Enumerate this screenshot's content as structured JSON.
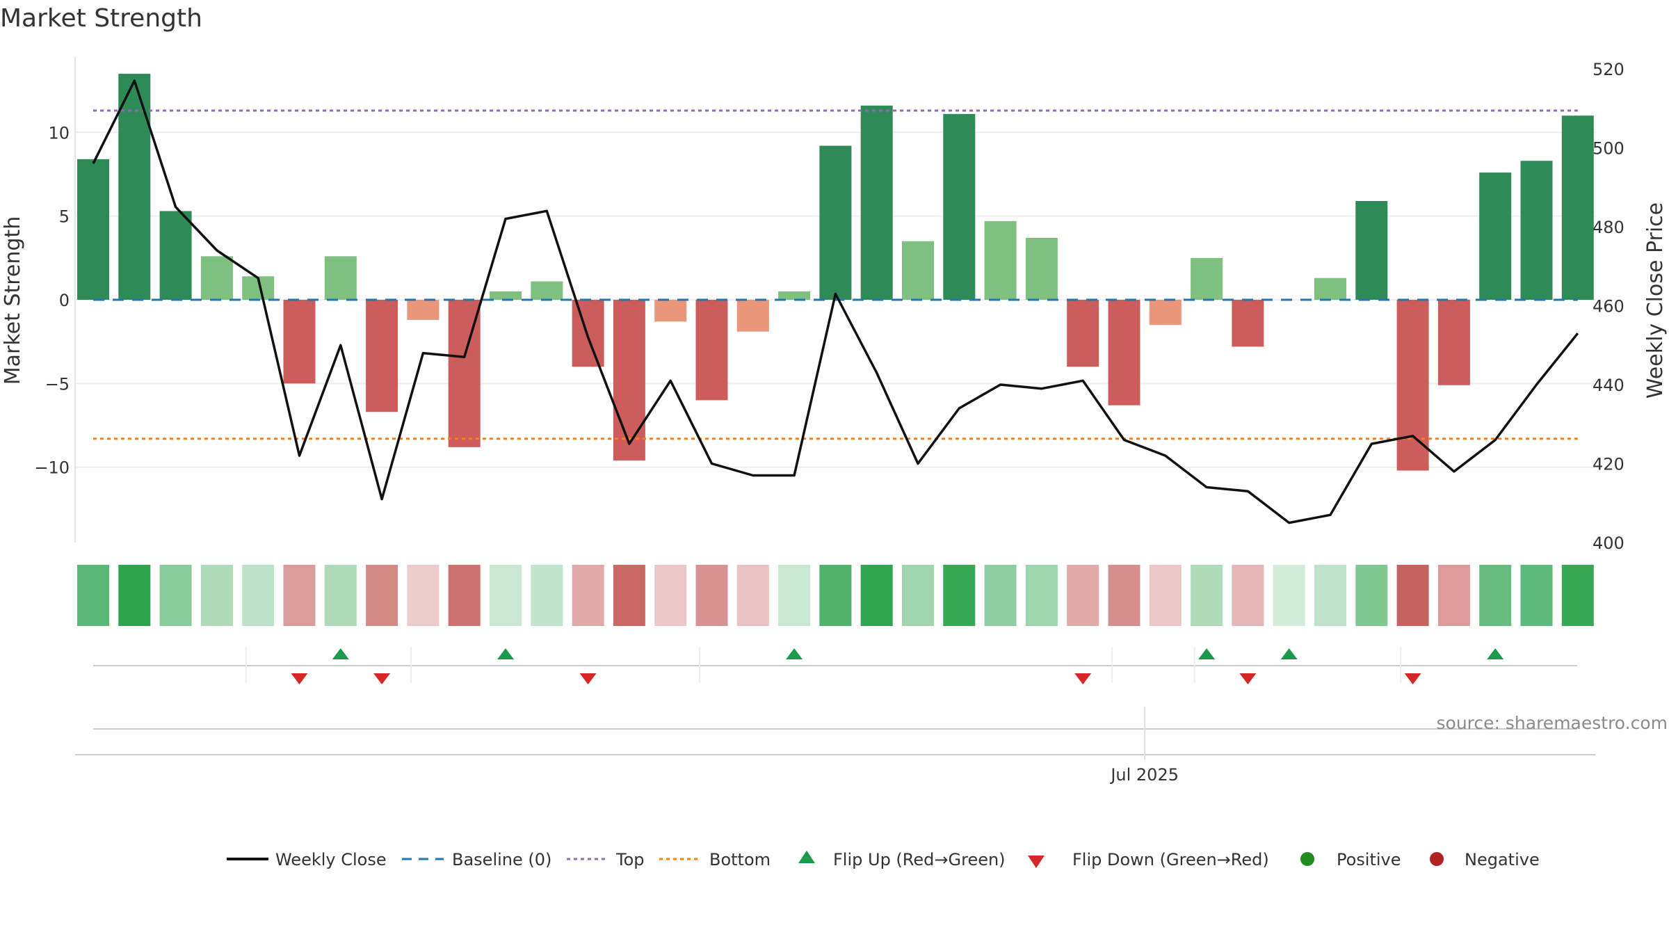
{
  "chart_data": {
    "type": "bar",
    "title": "Market Strength",
    "ylabel_left": "Market Strength",
    "ylabel_right": "Weekly Close Price",
    "left_ylim": [
      -14.5,
      14.5
    ],
    "left_ticks": [
      10,
      5,
      0,
      -5,
      -10
    ],
    "left_tick_labels": [
      "10",
      "5",
      "0",
      "−5",
      "−10"
    ],
    "right_ylim": [
      400,
      520
    ],
    "right_ticks": [
      520,
      500,
      480,
      460,
      440,
      420,
      400
    ],
    "right_tick_labels": [
      "520",
      "500",
      "480",
      "460",
      "440",
      "420",
      "400"
    ],
    "x_tick_label": "Jul 2025",
    "x_tick_index": 25.5,
    "top_line": 11.3,
    "bottom_line": -8.3,
    "strength": [
      8.4,
      13.5,
      5.3,
      2.6,
      1.4,
      -5.0,
      2.6,
      -6.7,
      -1.2,
      -8.8,
      0.5,
      1.1,
      -4.0,
      -9.6,
      -1.3,
      -6.0,
      -1.9,
      0.5,
      9.2,
      11.6,
      3.5,
      11.1,
      4.7,
      3.7,
      -4.0,
      -6.3,
      -1.5,
      2.5,
      -2.8,
      0.0,
      1.3,
      5.9,
      -10.2,
      -5.1,
      7.6,
      8.3,
      11.0
    ],
    "close": [
      496,
      517,
      485,
      474,
      467,
      422,
      450,
      411,
      448,
      447,
      482,
      484,
      452,
      425,
      441,
      420,
      417,
      417,
      463,
      443,
      420,
      434,
      440,
      439,
      441,
      426,
      422,
      414,
      413,
      405,
      407,
      425,
      427,
      418,
      426,
      440,
      453
    ],
    "flips_up": [
      6,
      10,
      17,
      27,
      29,
      34
    ],
    "flips_down": [
      5,
      7,
      12,
      24,
      28,
      32
    ],
    "colors": {
      "strong_pos": "#2e8b57",
      "weak_pos": "#7fbf7f",
      "strong_neg": "#cd5c5c",
      "weak_neg": "#e9967a",
      "line": "#111111",
      "baseline": "#1f77b4",
      "top": "#9467bd",
      "bottom": "#ff7f0e",
      "flip_up": "#1a9a4a",
      "flip_down": "#d62728",
      "positive": "#228b22",
      "negative": "#b22222"
    },
    "legend": [
      "Weekly Close",
      "Baseline (0)",
      "Top",
      "Bottom",
      "Flip Up (Red→Green)",
      "Flip Down (Green→Red)",
      "Positive",
      "Negative"
    ],
    "source": "source: sharemaestro.com"
  }
}
